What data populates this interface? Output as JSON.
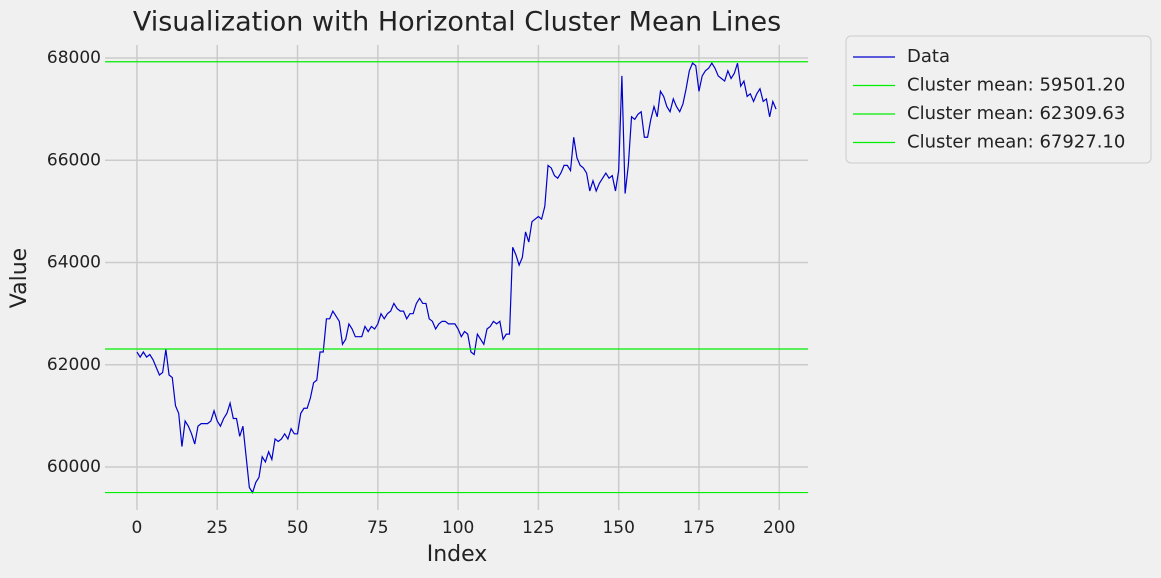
{
  "chart_data": {
    "type": "line",
    "title": "Visualization with Horizontal Cluster Mean Lines",
    "x_label": "Index",
    "y_label": "Value",
    "x": [
      0,
      1,
      2,
      3,
      4,
      5,
      6,
      7,
      8,
      9,
      10,
      11,
      12,
      13,
      14,
      15,
      16,
      17,
      18,
      19,
      20,
      21,
      22,
      23,
      24,
      25,
      26,
      27,
      28,
      29,
      30,
      31,
      32,
      33,
      34,
      35,
      36,
      37,
      38,
      39,
      40,
      41,
      42,
      43,
      44,
      45,
      46,
      47,
      48,
      49,
      50,
      51,
      52,
      53,
      54,
      55,
      56,
      57,
      58,
      59,
      60,
      61,
      62,
      63,
      64,
      65,
      66,
      67,
      68,
      69,
      70,
      71,
      72,
      73,
      74,
      75,
      76,
      77,
      78,
      79,
      80,
      81,
      82,
      83,
      84,
      85,
      86,
      87,
      88,
      89,
      90,
      91,
      92,
      93,
      94,
      95,
      96,
      97,
      98,
      99,
      100,
      101,
      102,
      103,
      104,
      105,
      106,
      107,
      108,
      109,
      110,
      111,
      112,
      113,
      114,
      115,
      116,
      117,
      118,
      119,
      120,
      121,
      122,
      123,
      124,
      125,
      126,
      127,
      128,
      129,
      130,
      131,
      132,
      133,
      134,
      135,
      136,
      137,
      138,
      139,
      140,
      141,
      142,
      143,
      144,
      145,
      146,
      147,
      148,
      149,
      150,
      151,
      152,
      153,
      154,
      155,
      156,
      157,
      158,
      159,
      160,
      161,
      162,
      163,
      164,
      165,
      166,
      167,
      168,
      169,
      170,
      171,
      172,
      173,
      174,
      175,
      176,
      177,
      178,
      179,
      180,
      181,
      182,
      183,
      184,
      185,
      186,
      187,
      188,
      189,
      190,
      191,
      192,
      193,
      194,
      195,
      196,
      197,
      198,
      199
    ],
    "series": [
      {
        "name": "Data",
        "color": "#0000cc",
        "values": [
          62250,
          62150,
          62250,
          62150,
          62200,
          62100,
          61950,
          61800,
          61850,
          62300,
          61800,
          61750,
          61200,
          61050,
          60400,
          60900,
          60800,
          60650,
          60450,
          60800,
          60850,
          60850,
          60850,
          60900,
          61100,
          60900,
          60800,
          60950,
          61050,
          61250,
          60950,
          60950,
          60600,
          60800,
          60200,
          59600,
          59500,
          59700,
          59800,
          60200,
          60100,
          60300,
          60150,
          60550,
          60500,
          60550,
          60650,
          60550,
          60750,
          60650,
          60650,
          61050,
          61150,
          61150,
          61350,
          61650,
          61700,
          62250,
          62250,
          62900,
          62900,
          63050,
          62950,
          62850,
          62400,
          62500,
          62800,
          62700,
          62550,
          62550,
          62550,
          62750,
          62650,
          62750,
          62700,
          62800,
          63000,
          62900,
          63000,
          63050,
          63200,
          63100,
          63050,
          63050,
          62900,
          63000,
          63000,
          63200,
          63300,
          63200,
          63200,
          62900,
          62850,
          62700,
          62800,
          62850,
          62850,
          62800,
          62800,
          62800,
          62700,
          62550,
          62650,
          62600,
          62250,
          62200,
          62600,
          62500,
          62400,
          62700,
          62750,
          62850,
          62800,
          62850,
          62500,
          62600,
          62600,
          64300,
          64150,
          63950,
          64100,
          64600,
          64400,
          64800,
          64850,
          64900,
          64850,
          65100,
          65900,
          65850,
          65700,
          65650,
          65750,
          65900,
          65900,
          65800,
          66450,
          66050,
          65900,
          65850,
          65750,
          65400,
          65600,
          65400,
          65550,
          65650,
          65750,
          65650,
          65700,
          65400,
          65800,
          67650,
          65350,
          65900,
          66850,
          66800,
          66900,
          66950,
          66450,
          66450,
          66800,
          67050,
          66850,
          67350,
          67250,
          67050,
          66950,
          67200,
          67050,
          66950,
          67100,
          67400,
          67750,
          67900,
          67850,
          67350,
          67650,
          67750,
          67800,
          67900,
          67800,
          67650,
          67600,
          67550,
          67750,
          67600,
          67700,
          67900,
          67450,
          67550,
          67250,
          67300,
          67150,
          67300,
          67400,
          67150,
          67200,
          66850,
          67150,
          67000
        ]
      }
    ],
    "hlines": [
      {
        "name": "Cluster mean: 59501.20",
        "value": 59501.2,
        "color": "#00ee00"
      },
      {
        "name": "Cluster mean: 62309.63",
        "value": 62309.63,
        "color": "#00ee00"
      },
      {
        "name": "Cluster mean: 67927.10",
        "value": 67927.1,
        "color": "#00ee00"
      }
    ],
    "xlim": [
      -9.95,
      208.95
    ],
    "ylim": [
      59160,
      68255
    ],
    "xticks": [
      0,
      25,
      50,
      75,
      100,
      125,
      150,
      175,
      200
    ],
    "yticks": [
      60000,
      62000,
      64000,
      66000,
      68000
    ],
    "grid": true
  }
}
